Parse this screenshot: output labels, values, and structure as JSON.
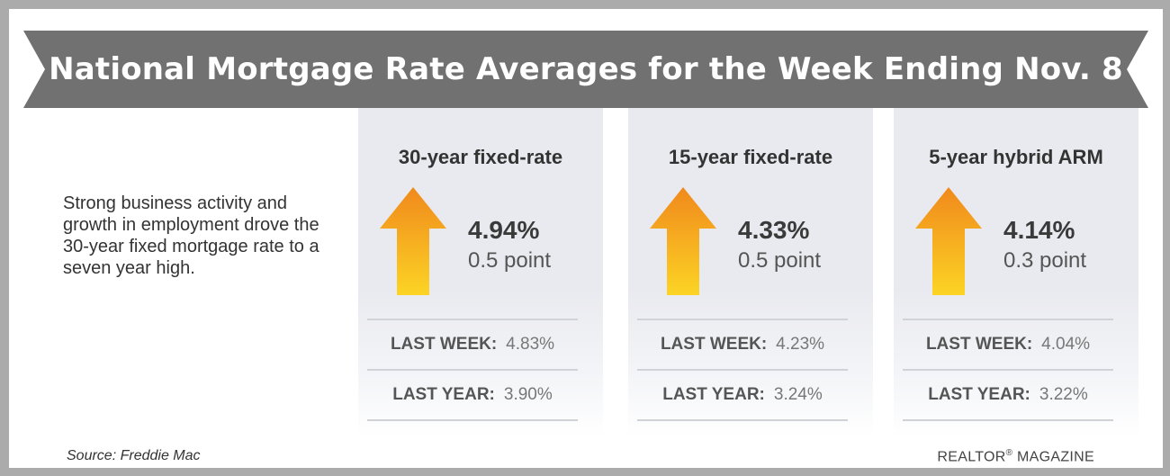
{
  "colors": {
    "banner": "#717171",
    "card_background": "#e9eaef",
    "arrow_top": "#f0891c",
    "arrow_bottom": "#fcd424"
  },
  "banner": {
    "title": "National Mortgage Rate Averages for the Week Ending Nov. 8"
  },
  "intro": {
    "text": "Strong business activity and growth in employment drove the 30-year fixed mortgage rate to a seven year high."
  },
  "cards": [
    {
      "title": "30-year fixed-rate",
      "icon": "up-arrow-icon",
      "rate": "4.94%",
      "change": "0.5 point",
      "last_week_label": "LAST WEEK:",
      "last_week_value": "4.83%",
      "last_year_label": "LAST YEAR:",
      "last_year_value": "3.90%"
    },
    {
      "title": "15-year fixed-rate",
      "icon": "up-arrow-icon",
      "rate": "4.33%",
      "change": "0.5 point",
      "last_week_label": "LAST WEEK:",
      "last_week_value": "4.23%",
      "last_year_label": "LAST YEAR:",
      "last_year_value": "3.24%"
    },
    {
      "title": "5-year hybrid ARM",
      "icon": "up-arrow-icon",
      "rate": "4.14%",
      "change": "0.3 point",
      "last_week_label": "LAST WEEK:",
      "last_week_value": "4.04%",
      "last_year_label": "LAST YEAR:",
      "last_year_value": "3.22%"
    }
  ],
  "footer": {
    "source": "Source: Freddie Mac",
    "brand": "REALTOR",
    "brand_mark": "®",
    "brand_suffix": " MAGAZINE"
  }
}
